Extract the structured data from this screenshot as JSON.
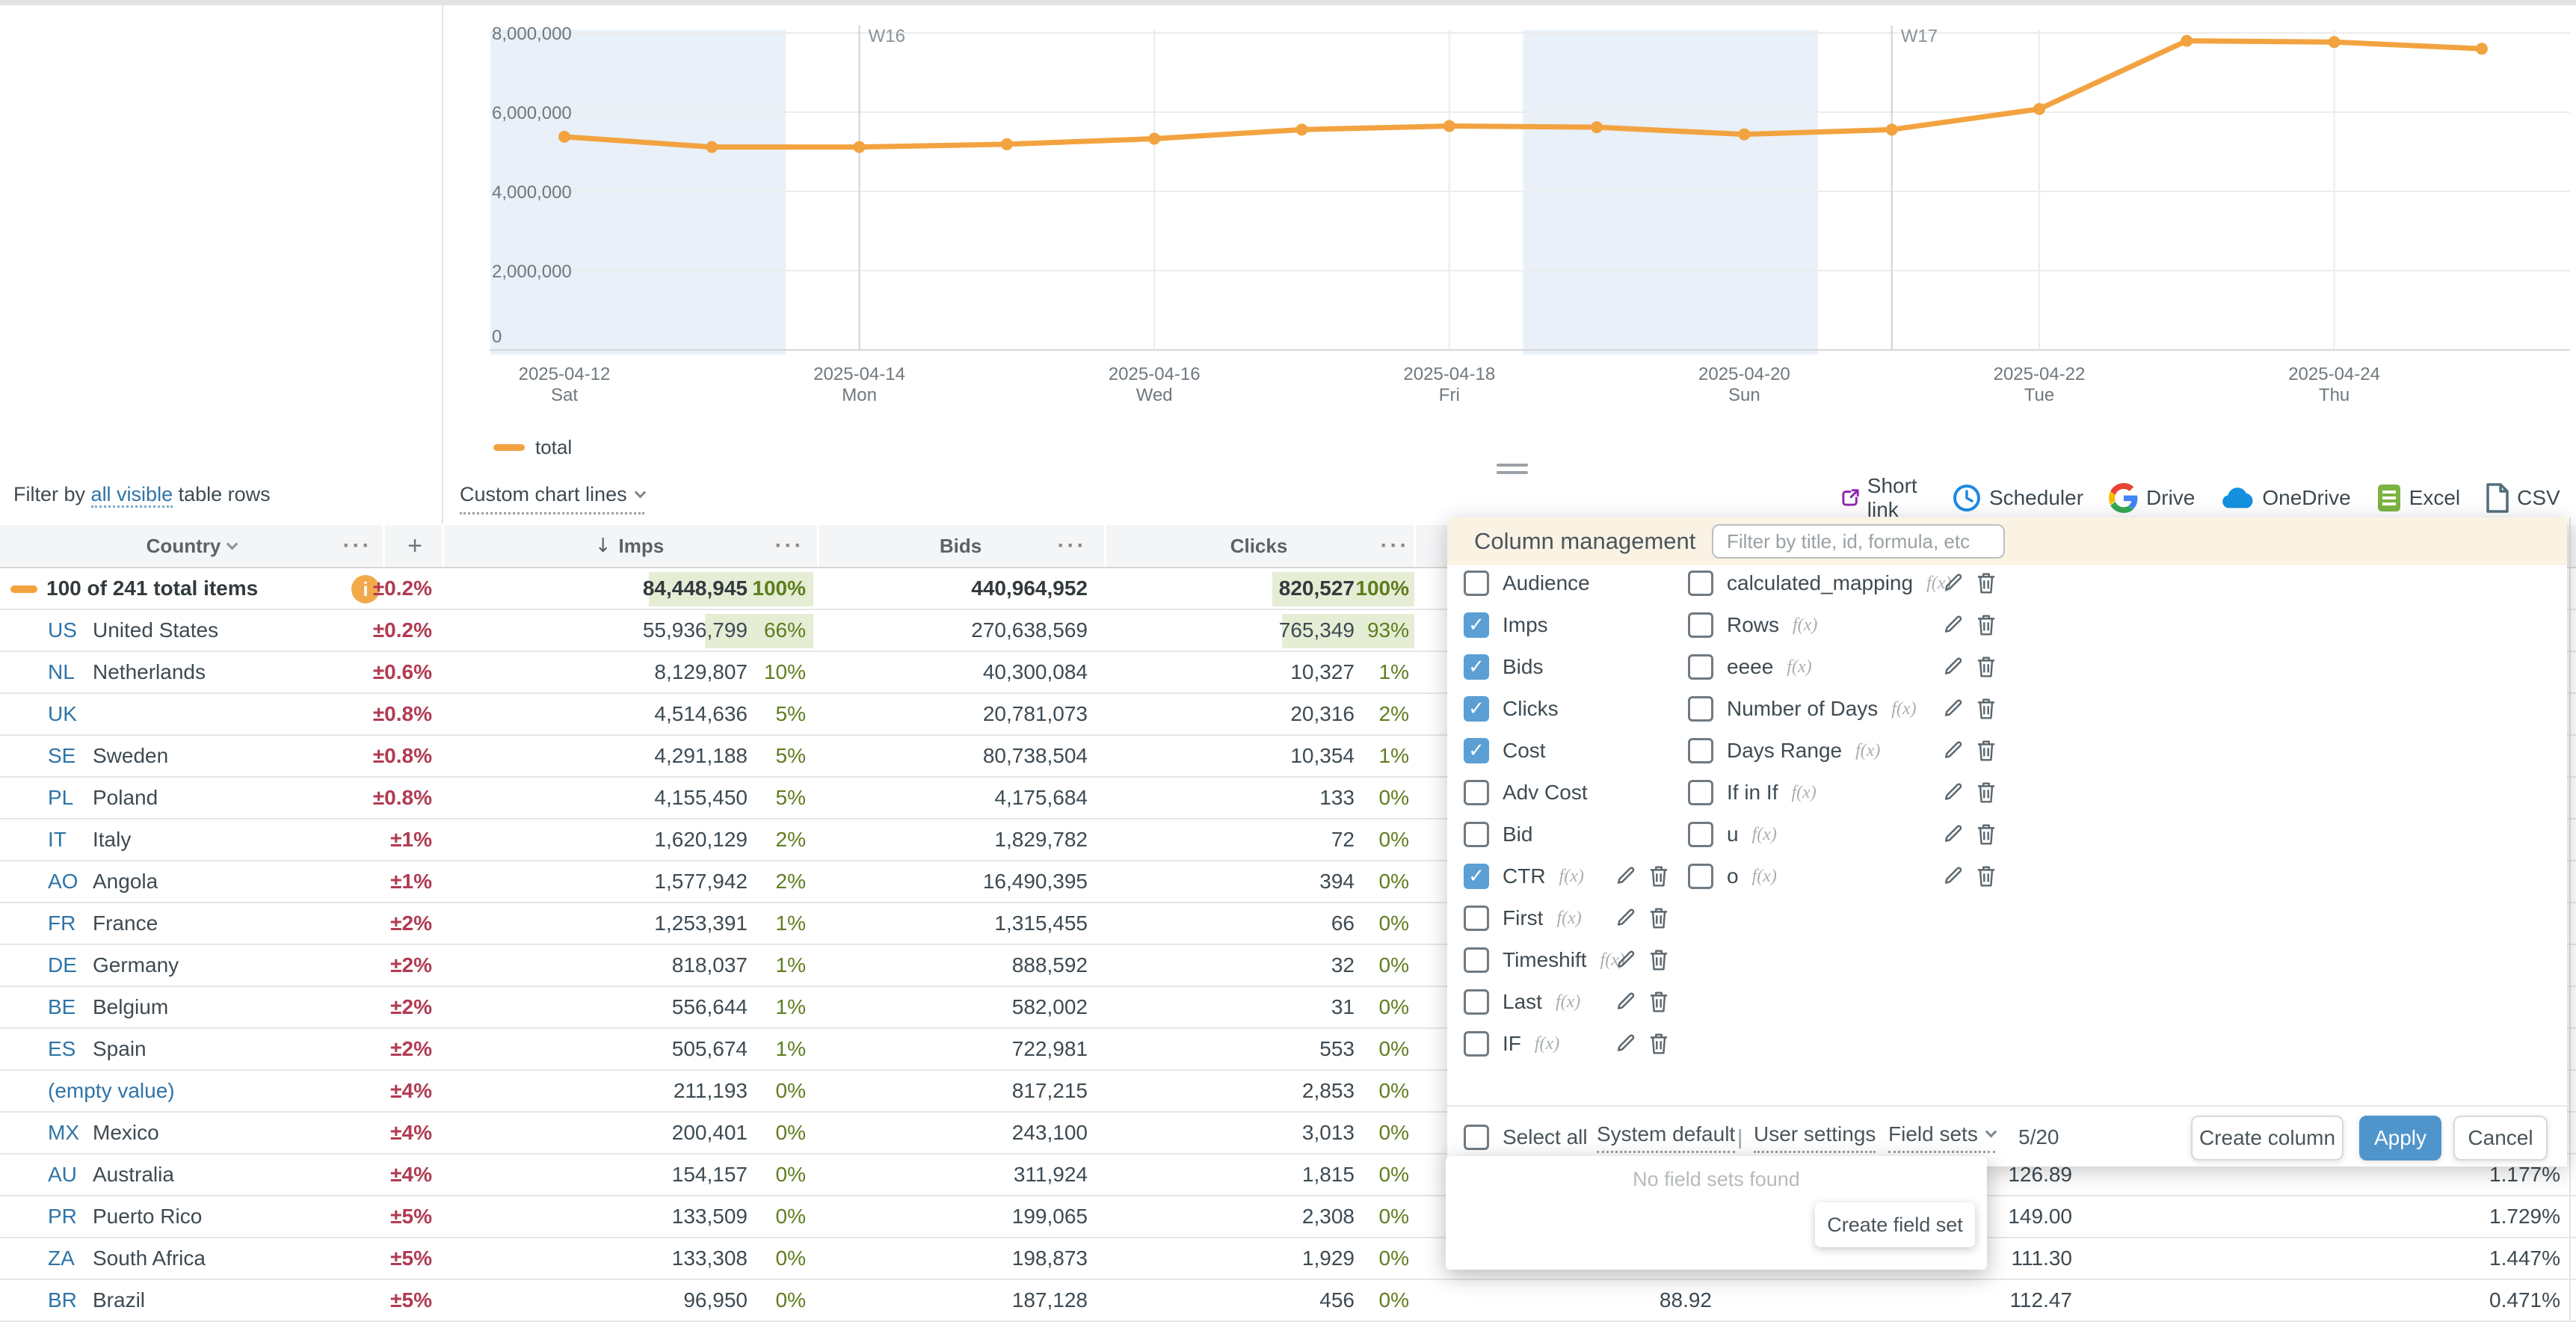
{
  "filter_bar": {
    "prefix": "Filter by",
    "link": "all visible",
    "suffix": "table rows"
  },
  "chart_controls": {
    "custom_lines": "Custom chart lines"
  },
  "toolbar": {
    "items": [
      {
        "icon": "short-link-icon",
        "label": "Short link"
      },
      {
        "icon": "scheduler-clock-icon",
        "label": "Scheduler"
      },
      {
        "icon": "google-drive-icon",
        "label": "Drive"
      },
      {
        "icon": "onedrive-cloud-icon",
        "label": "OneDrive"
      },
      {
        "icon": "excel-icon",
        "label": "Excel"
      },
      {
        "icon": "csv-file-icon",
        "label": "CSV"
      }
    ]
  },
  "chart_data": {
    "type": "line",
    "x_dates": [
      "2025-04-12",
      "2025-04-13",
      "2025-04-14",
      "2025-04-15",
      "2025-04-16",
      "2025-04-17",
      "2025-04-18",
      "2025-04-19",
      "2025-04-20",
      "2025-04-21",
      "2025-04-22",
      "2025-04-23",
      "2025-04-24",
      "2025-04-25"
    ],
    "series": [
      {
        "name": "total",
        "color": "#F2A340",
        "values": [
          5380000,
          5120000,
          5120000,
          5190000,
          5330000,
          5560000,
          5650000,
          5620000,
          5440000,
          5560000,
          6080000,
          7800000,
          7770000,
          7600000
        ]
      }
    ],
    "ylim": [
      0,
      8480000
    ],
    "yticks": [
      {
        "v": 8000000,
        "label": "8,000,000"
      },
      {
        "v": 6000000,
        "label": "6,000,000"
      },
      {
        "v": 4000000,
        "label": "4,000,000"
      },
      {
        "v": 2000000,
        "label": "2,000,000"
      },
      {
        "v": 0,
        "label": "0"
      }
    ],
    "xticks": [
      {
        "i": 0,
        "date": "2025-04-12",
        "dow": "Sat"
      },
      {
        "i": 2,
        "date": "2025-04-14",
        "dow": "Mon"
      },
      {
        "i": 4,
        "date": "2025-04-16",
        "dow": "Wed"
      },
      {
        "i": 6,
        "date": "2025-04-18",
        "dow": "Fri"
      },
      {
        "i": 8,
        "date": "2025-04-20",
        "dow": "Sun"
      },
      {
        "i": 10,
        "date": "2025-04-22",
        "dow": "Tue"
      },
      {
        "i": 12,
        "date": "2025-04-24",
        "dow": "Thu"
      }
    ],
    "vgrid_days": [
      4,
      6,
      10,
      12
    ],
    "weekend_bands": [
      [
        -0.5,
        1.5
      ],
      [
        6.5,
        8.5
      ]
    ],
    "week_markers": [
      {
        "label": "W16",
        "day": 2
      },
      {
        "label": "W17",
        "day": 9
      }
    ],
    "grid": true,
    "legend_position": "bottom-left",
    "colors": {
      "band": "#E9F0F8",
      "grid": "#ECECEC",
      "axis": "#D6D6D6",
      "marker_line": "#CDD2D7",
      "text": "#6F787E"
    }
  },
  "table": {
    "header": {
      "country": "Country",
      "imps": "Imps",
      "bids": "Bids",
      "clicks": "Clicks",
      "add": "+",
      "menu": "···",
      "sort_arrow": "↓"
    },
    "rows": [
      {
        "total": true,
        "label": "100 of 241 total items",
        "delta": "±0.2%",
        "imps": "84,448,945",
        "ipct": "100%",
        "ifill": 100,
        "bids": "440,964,952",
        "clicks": "820,527",
        "cpct": "100%",
        "cfill": 100
      },
      {
        "code": "US",
        "name": "United States",
        "delta": "±0.2%",
        "imps": "55,936,799",
        "ipct": "66%",
        "ifill": 66,
        "bids": "270,638,569",
        "clicks": "765,349",
        "cpct": "93%",
        "cfill": 93
      },
      {
        "code": "NL",
        "name": "Netherlands",
        "delta": "±0.6%",
        "imps": "8,129,807",
        "ipct": "10%",
        "bids": "40,300,084",
        "clicks": "10,327",
        "cpct": "1%"
      },
      {
        "code": "UK",
        "name": "",
        "delta": "±0.8%",
        "imps": "4,514,636",
        "ipct": "5%",
        "bids": "20,781,073",
        "clicks": "20,316",
        "cpct": "2%"
      },
      {
        "code": "SE",
        "name": "Sweden",
        "delta": "±0.8%",
        "imps": "4,291,188",
        "ipct": "5%",
        "bids": "80,738,504",
        "clicks": "10,354",
        "cpct": "1%"
      },
      {
        "code": "PL",
        "name": "Poland",
        "delta": "±0.8%",
        "imps": "4,155,450",
        "ipct": "5%",
        "bids": "4,175,684",
        "clicks": "133",
        "cpct": "0%"
      },
      {
        "code": "IT",
        "name": "Italy",
        "delta": "±1%",
        "imps": "1,620,129",
        "ipct": "2%",
        "bids": "1,829,782",
        "clicks": "72",
        "cpct": "0%"
      },
      {
        "code": "AO",
        "name": "Angola",
        "delta": "±1%",
        "imps": "1,577,942",
        "ipct": "2%",
        "bids": "16,490,395",
        "clicks": "394",
        "cpct": "0%"
      },
      {
        "code": "FR",
        "name": "France",
        "delta": "±2%",
        "imps": "1,253,391",
        "ipct": "1%",
        "bids": "1,315,455",
        "clicks": "66",
        "cpct": "0%"
      },
      {
        "code": "DE",
        "name": "Germany",
        "delta": "±2%",
        "imps": "818,037",
        "ipct": "1%",
        "bids": "888,592",
        "clicks": "32",
        "cpct": "0%"
      },
      {
        "code": "BE",
        "name": "Belgium",
        "delta": "±2%",
        "imps": "556,644",
        "ipct": "1%",
        "bids": "582,002",
        "clicks": "31",
        "cpct": "0%"
      },
      {
        "code": "ES",
        "name": "Spain",
        "delta": "±2%",
        "imps": "505,674",
        "ipct": "1%",
        "bids": "722,981",
        "clicks": "553",
        "cpct": "0%"
      },
      {
        "code": null,
        "name": "(empty value)",
        "empty": true,
        "delta": "±4%",
        "imps": "211,193",
        "ipct": "0%",
        "bids": "817,215",
        "clicks": "2,853",
        "cpct": "0%"
      },
      {
        "code": "MX",
        "name": "Mexico",
        "delta": "±4%",
        "imps": "200,401",
        "ipct": "0%",
        "bids": "243,100",
        "clicks": "3,013",
        "cpct": "0%"
      },
      {
        "code": "AU",
        "name": "Australia",
        "delta": "±4%",
        "imps": "154,157",
        "ipct": "0%",
        "bids": "311,924",
        "clicks": "1,815",
        "cpct": "0%",
        "metric": "126.89",
        "ctr": "1.177%"
      },
      {
        "code": "PR",
        "name": "Puerto Rico",
        "delta": "±5%",
        "imps": "133,509",
        "ipct": "0%",
        "bids": "199,065",
        "clicks": "2,308",
        "cpct": "0%",
        "metric": "149.00",
        "ctr": "1.729%"
      },
      {
        "code": "ZA",
        "name": "South Africa",
        "delta": "±5%",
        "imps": "133,308",
        "ipct": "0%",
        "bids": "198,873",
        "clicks": "1,929",
        "cpct": "0%",
        "metric": "111.30",
        "ctr": "1.447%"
      },
      {
        "code": "BR",
        "name": "Brazil",
        "delta": "±5%",
        "imps": "96,950",
        "ipct": "0%",
        "bids": "187,128",
        "clicks": "456",
        "cpct": "0%",
        "cost": "88.92",
        "metric": "112.47",
        "ctr": "0.471%"
      }
    ]
  },
  "panel": {
    "title": "Column management",
    "search_placeholder": "Filter by title, id, formula, etc",
    "fx_label": "f(x)",
    "left_fields": [
      {
        "label": "Audience",
        "checked": false,
        "fx": false
      },
      {
        "label": "Imps",
        "checked": true,
        "fx": false
      },
      {
        "label": "Bids",
        "checked": true,
        "fx": false
      },
      {
        "label": "Clicks",
        "checked": true,
        "fx": false
      },
      {
        "label": "Cost",
        "checked": true,
        "fx": false
      },
      {
        "label": "Adv Cost",
        "checked": false,
        "fx": false
      },
      {
        "label": "Bid",
        "checked": false,
        "fx": false
      },
      {
        "label": "CTR",
        "checked": true,
        "fx": true
      },
      {
        "label": "First",
        "checked": false,
        "fx": true
      },
      {
        "label": "Timeshift",
        "checked": false,
        "fx": true
      },
      {
        "label": "Last",
        "checked": false,
        "fx": true
      },
      {
        "label": "IF",
        "checked": false,
        "fx": true
      }
    ],
    "right_fields": [
      {
        "label": "calculated_mapping",
        "checked": false,
        "fx": true
      },
      {
        "label": "Rows",
        "checked": false,
        "fx": true
      },
      {
        "label": "eeee",
        "checked": false,
        "fx": true
      },
      {
        "label": "Number of Days",
        "checked": false,
        "fx": true
      },
      {
        "label": "Days Range",
        "checked": false,
        "fx": true
      },
      {
        "label": "If in If",
        "checked": false,
        "fx": true
      },
      {
        "label": "u",
        "checked": false,
        "fx": true
      },
      {
        "label": "o",
        "checked": false,
        "fx": true
      }
    ],
    "footer": {
      "select_all": "Select all",
      "system_default": "System default",
      "separator": "|",
      "user_settings": "User settings",
      "field_sets": "Field sets",
      "count": "5/20"
    },
    "buttons": {
      "create_column": "Create column",
      "apply": "Apply",
      "cancel": "Cancel"
    },
    "fieldsets_popup": {
      "empty": "No field sets found",
      "create": "Create field set"
    }
  }
}
